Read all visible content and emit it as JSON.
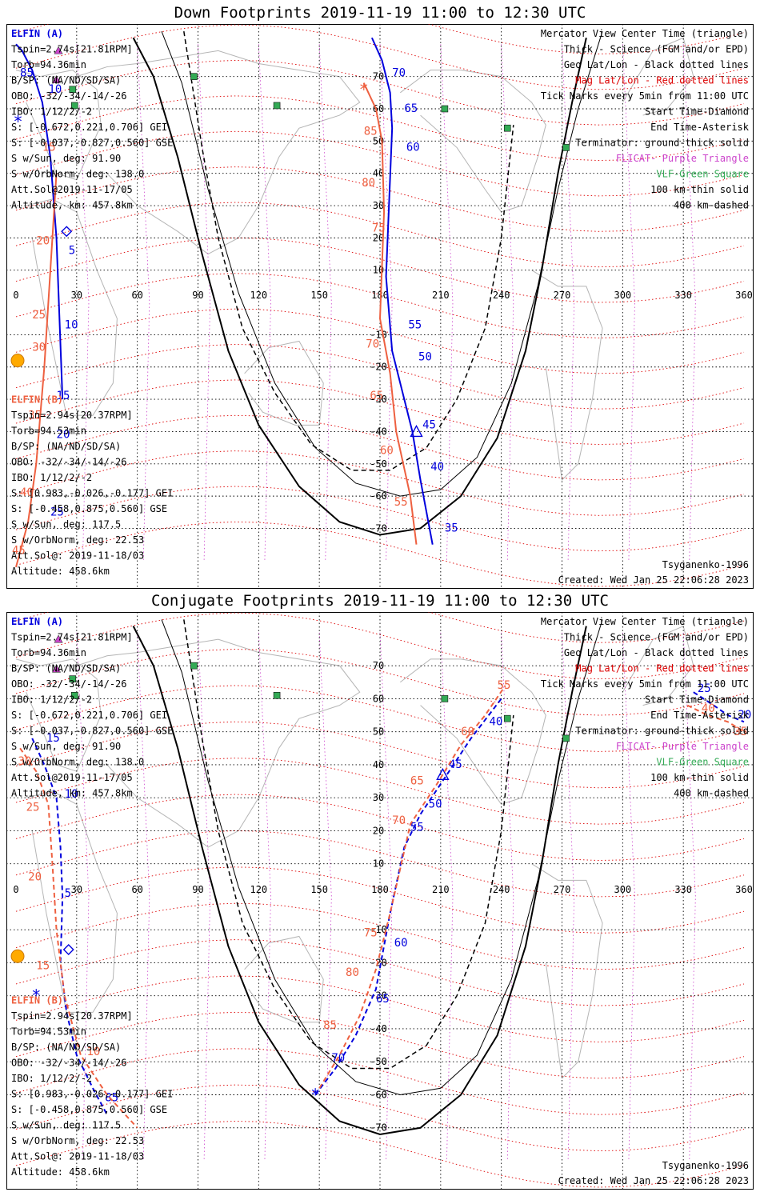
{
  "panels": [
    {
      "id": "down",
      "title": "Down Footprints 2019-11-19 11:00 to 12:30 UTC",
      "sat_a_name": "ELFIN (A)",
      "sat_a_info": [
        "Tspin=2.74s[21.81RPM]",
        "Torb=94.36min",
        "B/SP: (NA/ND/SD/SA)",
        "OBO: -32/-34/-14/-26",
        "IBO: 1/12/2/-2",
        "S: [-0.672,0.221,0.706] GEI",
        "S: [-0.037,-0.827,0.560] GSE",
        "S w/Sun, deg: 91.90",
        "S w/OrbNorm, deg: 138.0",
        "Att.Sol@2019-11-17/05",
        "Altitude, km: 457.8km"
      ],
      "sat_b_name": "ELFIN (B)",
      "sat_b_info": [
        "Tspin=2.94s[20.37RPM]",
        "Torb=94.53min",
        "B/SP: (NA/ND/SD/SA)",
        "OBO: -32/-34/-14/-26",
        "IBO: 1/12/2/-2",
        "S: [0.983,-0.026,-0.177] GEI",
        "S: [-0.458,0.875,0.560] GSE",
        "S w/Sun, deg: 117.5",
        "S w/OrbNorm, deg: 22.53",
        "Att.Sol@: 2019-11-18/03",
        "Altitude: 458.6km"
      ],
      "legend": [
        "Mercator View Center Time (triangle)",
        "Thick - Science (FGM and/or EPD)",
        "Geo Lat/Lon - Black dotted lines",
        "Mag Lat/Lon - Red dotted lines",
        "Tick Marks every 5min from 11:00 UTC",
        "Start Time-Diamond",
        "End Time-Asterisk",
        "Terminator: ground-thick solid",
        "FLICAT- Purple Triangle",
        "VLF-Green Square",
        "100 km-thin solid",
        "400 km-dashed"
      ],
      "model": "Tsyganenko-1996",
      "created": "Created: Wed Jan 25 22:06:28 2023",
      "track_a": {
        "lon": [
          176,
          181,
          185,
          186,
          183,
          186,
          190,
          196,
          200,
          206
        ],
        "lat": [
          82,
          75,
          65,
          54,
          8,
          -15,
          -25,
          -40,
          -55,
          -75
        ],
        "ticks": [
          {
            "label": "70",
            "lon": 186,
            "lat": 70
          },
          {
            "label": "65",
            "lon": 192,
            "lat": 59
          },
          {
            "label": "60",
            "lon": 193,
            "lat": 47
          },
          {
            "label": "55",
            "lon": 194,
            "lat": -8
          },
          {
            "label": "50",
            "lon": 199,
            "lat": -18
          },
          {
            "label": "45",
            "lon": 201,
            "lat": -39
          },
          {
            "label": "40",
            "lon": 205,
            "lat": -52
          },
          {
            "label": "35",
            "lon": 212,
            "lat": -71
          }
        ],
        "center": {
          "lon": 198,
          "lat": -40
        }
      },
      "track_b": {
        "lon": [
          172,
          178,
          181,
          182,
          180,
          185,
          188,
          195,
          198
        ],
        "lat": [
          68,
          60,
          50,
          28,
          -5,
          -22,
          -40,
          -60,
          -75
        ],
        "ticks": [
          {
            "label": "85",
            "lon": 172,
            "lat": 52
          },
          {
            "label": "80",
            "lon": 171,
            "lat": 36
          },
          {
            "label": "75",
            "lon": 176,
            "lat": 22
          },
          {
            "label": "70",
            "lon": 173,
            "lat": -14
          },
          {
            "label": "65",
            "lon": 175,
            "lat": -30
          },
          {
            "label": "60",
            "lon": 180,
            "lat": -47
          },
          {
            "label": "55",
            "lon": 187,
            "lat": -63
          }
        ],
        "end": {
          "lon": 172,
          "lat": 66
        }
      },
      "left_a": {
        "lon": [
          0,
          3,
          8,
          13,
          17,
          20,
          23
        ],
        "lat": [
          80,
          78,
          72,
          62,
          45,
          20,
          -30
        ],
        "ticks": [
          {
            "label": "85",
            "lon": 2,
            "lat": 70
          },
          {
            "label": "10",
            "lon": 16,
            "lat": 65
          },
          {
            "label": "5",
            "lon": 26,
            "lat": 15
          },
          {
            "label": "10",
            "lon": 24,
            "lat": -8
          },
          {
            "label": "15",
            "lon": 20,
            "lat": -30
          },
          {
            "label": "20",
            "lon": 20,
            "lat": -42
          },
          {
            "label": "25",
            "lon": 17,
            "lat": -66
          }
        ],
        "start": {
          "lon": 25,
          "lat": 22
        },
        "end": {
          "lon": 1,
          "lat": 56
        }
      },
      "left_b": {
        "lon": [
          0,
          6,
          10,
          14,
          17,
          20
        ],
        "lat": [
          -82,
          -68,
          -50,
          -20,
          10,
          40
        ],
        "ticks": [
          {
            "label": "15",
            "lon": 13,
            "lat": 47
          },
          {
            "label": "20",
            "lon": 10,
            "lat": 18
          },
          {
            "label": "25",
            "lon": 8,
            "lat": -5
          },
          {
            "label": "30",
            "lon": 8,
            "lat": -15
          },
          {
            "label": "35",
            "lon": 6,
            "lat": -36
          },
          {
            "label": "40",
            "lon": 2,
            "lat": -60
          },
          {
            "label": "45",
            "lon": -2,
            "lat": -78
          }
        ]
      },
      "term_ground": {
        "lon": [
          58,
          68,
          80,
          92,
          105,
          120,
          140,
          160,
          180,
          200,
          220,
          238,
          252,
          260,
          268,
          275,
          282
        ],
        "lat": [
          82,
          70,
          45,
          15,
          -15,
          -38,
          -57,
          -68,
          -72,
          -70,
          -60,
          -42,
          -15,
          10,
          40,
          62,
          82
        ]
      },
      "term_100": {
        "lon": [
          72,
          82,
          95,
          110,
          128,
          148,
          168,
          190,
          210,
          228,
          245,
          258,
          268,
          278,
          290
        ],
        "lat": [
          84,
          68,
          35,
          3,
          -25,
          -45,
          -56,
          -60,
          -58,
          -48,
          -25,
          5,
          35,
          60,
          84
        ]
      },
      "term_400": {
        "lon": [
          83,
          86,
          92,
          100,
          112,
          128,
          146,
          166,
          185,
          203,
          218,
          232,
          240,
          246
        ],
        "lat": [
          84,
          72,
          48,
          20,
          -8,
          -28,
          -44,
          -52,
          -52,
          -45,
          -30,
          -8,
          20,
          55
        ]
      }
    },
    {
      "id": "conj",
      "title": "Conjugate Footprints 2019-11-19 11:00 to 12:30 UTC",
      "sat_a_name": "ELFIN (A)",
      "sat_a_info": [
        "Tspin=2.74s[21.81RPM]",
        "Torb=94.36min",
        "B/SP: (NA/ND/SD/SA)",
        "OBO: -32/-34/-14/-26",
        "IBO: 1/12/2/-2",
        "S: [-0.672,0.221,0.706] GEI",
        "S: [-0.037,-0.827,0.560] GSE",
        "S w/Sun, deg: 91.90",
        "S w/OrbNorm, deg: 138.0",
        "Att.Sol@2019-11-17/05",
        "Altitude, km: 457.8km"
      ],
      "sat_b_name": "ELFIN (B)",
      "sat_b_info": [
        "Tspin=2.94s[20.37RPM]",
        "Torb=94.53min",
        "B/SP: (NA/ND/SD/SA)",
        "OBO: -32/-34/-14/-26",
        "IBO: 1/12/2/-2",
        "S: [0.983,-0.026,-0.177] GEI",
        "S: [-0.458,0.875,0.560] GSE",
        "S w/Sun, deg: 117.5",
        "S w/OrbNorm, deg: 22.53",
        "Att.Sol@: 2019-11-18/03",
        "Altitude: 458.6km"
      ],
      "legend": [
        "Mercator View Center Time (triangle)",
        "Thick - Science (FGM and/or EPD)",
        "Geo Lat/Lon - Black dotted lines",
        "Mag Lat/Lon - Red dotted lines",
        "Tick Marks every 5min from 11:00 UTC",
        "Start Time-Diamond",
        "End Time-Asterisk",
        "Terminator: ground-thick solid",
        "FLICAT- Purple Triangle",
        "VLF-Green Square",
        "100 km-thin solid",
        "400 km-dashed"
      ],
      "model": "Tsyganenko-1996",
      "created": "Created: Wed Jan 25 22:06:28 2023",
      "track_a": {
        "lon": [
          148,
          158,
          168,
          178,
          185,
          192,
          200,
          212,
          225,
          240
        ],
        "lat": [
          -60,
          -52,
          -42,
          -28,
          -5,
          15,
          25,
          36,
          48,
          60
        ],
        "ticks": [
          {
            "label": "70",
            "lon": 156,
            "lat": -50
          },
          {
            "label": "65",
            "lon": 178,
            "lat": -32
          },
          {
            "label": "60",
            "lon": 187,
            "lat": -15
          },
          {
            "label": "55",
            "lon": 195,
            "lat": 20
          },
          {
            "label": "50",
            "lon": 204,
            "lat": 27
          },
          {
            "label": "45",
            "lon": 214,
            "lat": 39
          },
          {
            "label": "40",
            "lon": 234,
            "lat": 52
          }
        ],
        "center": {
          "lon": 211,
          "lat": 37
        },
        "end": {
          "lon": 148,
          "lat": -60
        }
      },
      "track_b": {
        "lon": [
          150,
          160,
          170,
          178,
          185,
          195,
          208,
          220,
          232,
          242
        ],
        "lat": [
          -58,
          -48,
          -36,
          -22,
          -5,
          22,
          34,
          46,
          55,
          64
        ],
        "ticks": [
          {
            "label": "85",
            "lon": 152,
            "lat": -40
          },
          {
            "label": "80",
            "lon": 163,
            "lat": -24
          },
          {
            "label": "75",
            "lon": 172,
            "lat": -12
          },
          {
            "label": "70",
            "lon": 186,
            "lat": 22
          },
          {
            "label": "65",
            "lon": 195,
            "lat": 34
          },
          {
            "label": "60",
            "lon": 220,
            "lat": 49
          },
          {
            "label": "55",
            "lon": 238,
            "lat": 63
          }
        ]
      },
      "left_a": {
        "lon": [
          8,
          14,
          20,
          22,
          23,
          22,
          25,
          30,
          38,
          45
        ],
        "lat": [
          48,
          40,
          30,
          15,
          0,
          -20,
          -35,
          -48,
          -58,
          -66
        ],
        "ticks": [
          {
            "label": "15",
            "lon": 15,
            "lat": 47
          },
          {
            "label": "10",
            "lon": 24,
            "lat": 30
          },
          {
            "label": "5",
            "lon": 24,
            "lat": 0
          },
          {
            "label": "85",
            "lon": 44,
            "lat": -62
          }
        ],
        "start": {
          "lon": 26,
          "lat": -16
        },
        "end": {
          "lon": 10,
          "lat": -30
        }
      },
      "left_b": {
        "lon": [
          2,
          10,
          16,
          18,
          20,
          24,
          32,
          45,
          60
        ],
        "lat": [
          45,
          38,
          28,
          10,
          -10,
          -30,
          -48,
          -60,
          -70
        ],
        "ticks": [
          {
            "label": "30",
            "lon": 1,
            "lat": 40
          },
          {
            "label": "25",
            "lon": 5,
            "lat": 26
          },
          {
            "label": "20",
            "lon": 6,
            "lat": 5
          },
          {
            "label": "15",
            "lon": 10,
            "lat": -22
          },
          {
            "label": "10",
            "lon": 35,
            "lat": -48
          }
        ]
      },
      "right_a": {
        "lon": [
          335,
          345,
          352,
          360
        ],
        "lat": [
          62,
          58,
          55,
          53
        ],
        "ticks": [
          {
            "label": "25",
            "lon": 337,
            "lat": 62
          },
          {
            "label": "20",
            "lon": 357,
            "lat": 54
          }
        ]
      },
      "right_b": {
        "lon": [
          332,
          342,
          352,
          360
        ],
        "lat": [
          58,
          55,
          53,
          50
        ],
        "ticks": [
          {
            "label": "40",
            "lon": 339,
            "lat": 56
          },
          {
            "label": "35",
            "lon": 355,
            "lat": 49
          }
        ]
      },
      "term_ground": {
        "lon": [
          58,
          68,
          80,
          92,
          105,
          120,
          140,
          160,
          180,
          200,
          220,
          238,
          252,
          260,
          268,
          275,
          282
        ],
        "lat": [
          82,
          70,
          45,
          15,
          -15,
          -38,
          -57,
          -68,
          -72,
          -70,
          -60,
          -42,
          -15,
          10,
          40,
          62,
          82
        ]
      },
      "term_100": {
        "lon": [
          72,
          82,
          95,
          110,
          128,
          148,
          168,
          190,
          210,
          228,
          245,
          258,
          268,
          278,
          290
        ],
        "lat": [
          84,
          68,
          35,
          3,
          -25,
          -45,
          -56,
          -60,
          -58,
          -48,
          -25,
          5,
          35,
          60,
          84
        ]
      },
      "term_400": {
        "lon": [
          83,
          86,
          92,
          100,
          112,
          128,
          146,
          166,
          185,
          203,
          218,
          232,
          240,
          246
        ],
        "lat": [
          84,
          72,
          48,
          20,
          -8,
          -28,
          -44,
          -52,
          -52,
          -45,
          -30,
          -8,
          20,
          55
        ]
      }
    }
  ],
  "map": {
    "lon_ticks": [
      "0",
      "30",
      "60",
      "90",
      "120",
      "150",
      "180",
      "210",
      "240",
      "270",
      "300",
      "330",
      "360"
    ],
    "lat_ticks": [
      70,
      60,
      50,
      40,
      30,
      20,
      10,
      -10,
      -20,
      -30,
      -40,
      -50,
      -60,
      -70
    ],
    "vlf_stations": [
      {
        "lon": 88,
        "lat": 70
      },
      {
        "lon": 129,
        "lat": 61
      },
      {
        "lon": 212,
        "lat": 60
      },
      {
        "lon": 243,
        "lat": 54
      },
      {
        "lon": 272,
        "lat": 48
      },
      {
        "lon": 28,
        "lat": 66
      },
      {
        "lon": 29,
        "lat": 61
      }
    ],
    "flicat": [
      {
        "lon": 21,
        "lat": 78
      },
      {
        "lon": 20,
        "lat": 69
      }
    ],
    "sun": {
      "lon": 0,
      "lat": -18
    }
  },
  "colors": {
    "sat_a": "#0000dd",
    "sat_b": "#ee6040",
    "mag_grid": "#dd0000",
    "geo_grid": "#000000",
    "flicat": "#cc44cc",
    "vlf": "#33aa55",
    "coast": "#b5b5b5",
    "sun": "#ffaa00"
  }
}
